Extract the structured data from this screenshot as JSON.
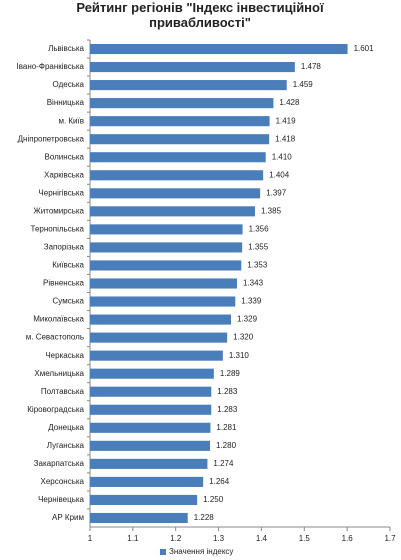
{
  "chart_data": {
    "type": "hbar",
    "title": "Рейтинг регіонів \"Індекс інвестиційної привабливості\"",
    "categories": [
      "Львівська",
      "Івано-Франківська",
      "Одеська",
      "Вінницька",
      "м. Київ",
      "Дніпропетровська",
      "Волинська",
      "Харківська",
      "Чернігівська",
      "Житомирська",
      "Тернопільська",
      "Запорізька",
      "Київська",
      "Рівненська",
      "Сумська",
      "Миколаївська",
      "м. Севастополь",
      "Черкаська",
      "Хмельницька",
      "Полтавська",
      "Кіровоградська",
      "Донецька",
      "Луганська",
      "Закарпатська",
      "Херсонська",
      "Чернівецька",
      "АР Крим"
    ],
    "series": [
      {
        "name": "Значення індексу",
        "color": "#4a7ebb",
        "values": [
          1.601,
          1.478,
          1.459,
          1.428,
          1.419,
          1.418,
          1.41,
          1.404,
          1.397,
          1.385,
          1.356,
          1.355,
          1.353,
          1.343,
          1.339,
          1.329,
          1.32,
          1.31,
          1.289,
          1.283,
          1.283,
          1.281,
          1.28,
          1.274,
          1.264,
          1.25,
          1.228
        ],
        "value_labels": [
          "1.601",
          "1.478",
          "1.459",
          "1.428",
          "1.419",
          "1.418",
          "1.410",
          "1.404",
          "1.397",
          "1.385",
          "1.356",
          "1.355",
          "1.353",
          "1.343",
          "1.339",
          "1.329",
          "1.320",
          "1.310",
          "1.289",
          "1.283",
          "1.283",
          "1.281",
          "1.280",
          "1.274",
          "1.264",
          "1.250",
          "1.228"
        ]
      }
    ],
    "xlim": [
      1,
      1.7
    ],
    "xticks": [
      1,
      1.1,
      1.2,
      1.3,
      1.4,
      1.5,
      1.6,
      1.7
    ],
    "grid": false,
    "legend": "bottom"
  }
}
